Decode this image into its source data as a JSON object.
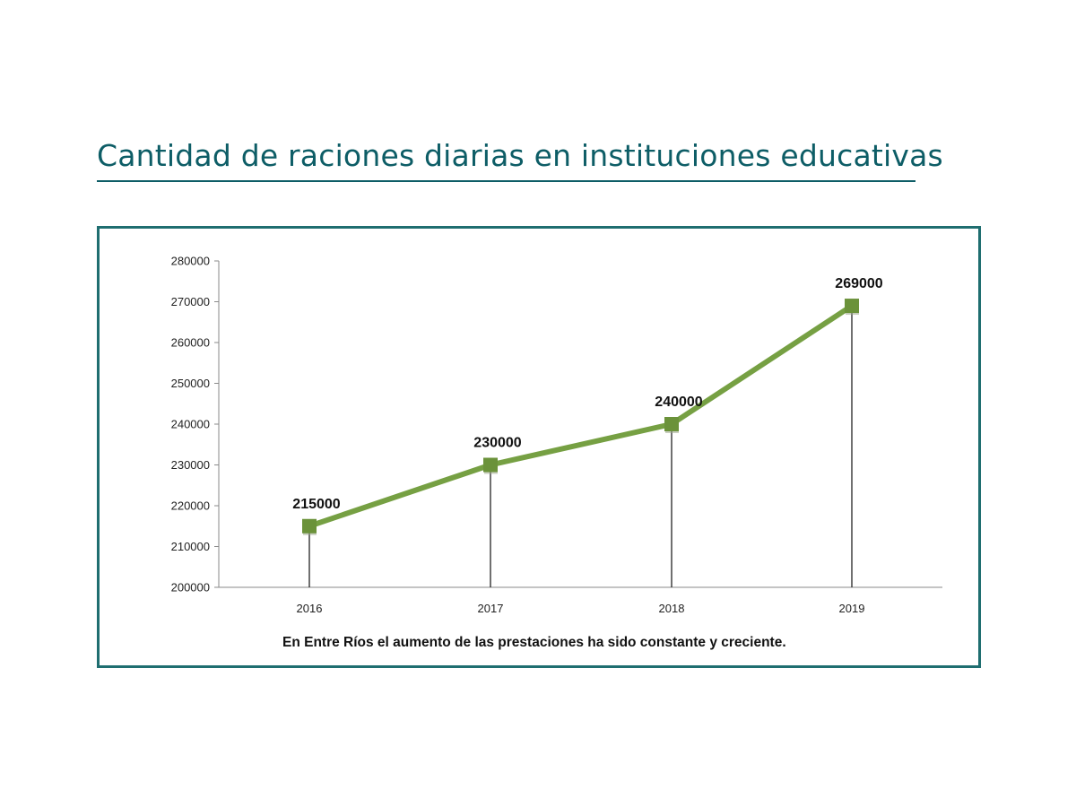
{
  "page": {
    "title": "Cantidad de raciones diarias en instituciones educativas"
  },
  "colors": {
    "title": "#0d5d66",
    "frame": "#1f6e70",
    "line": "#76a043",
    "marker": "#6b923a"
  },
  "chart_data": {
    "type": "line",
    "x": [
      "2016",
      "2017",
      "2018",
      "2019"
    ],
    "series": [
      {
        "values": [
          215000,
          230000,
          240000,
          269000
        ]
      }
    ],
    "data_labels": [
      "215000",
      "230000",
      "240000",
      "269000"
    ],
    "y_ticks": [
      "200000",
      "210000",
      "220000",
      "230000",
      "240000",
      "250000",
      "260000",
      "270000",
      "280000"
    ],
    "ylim": [
      200000,
      280000
    ],
    "drop_lines": true,
    "grid": false,
    "legend": "none",
    "caption": "En Entre Ríos el aumento  de las prestaciones ha sido constante y creciente."
  }
}
